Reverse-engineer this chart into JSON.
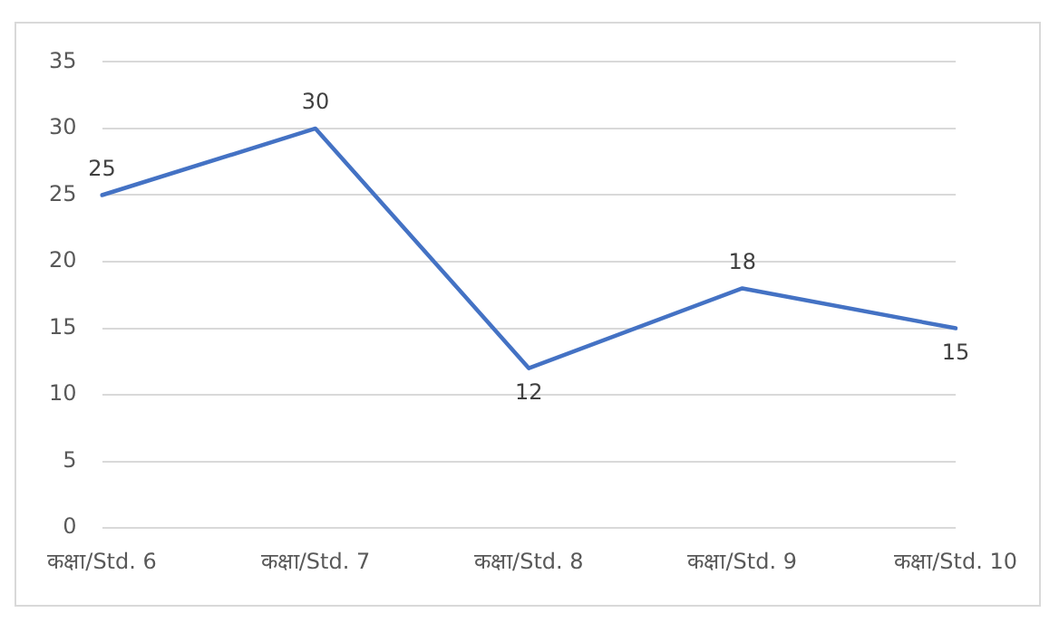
{
  "chart_data": {
    "type": "line",
    "categories": [
      "कक्षा/Std. 6",
      "कक्षा/Std. 7",
      "कक्षा/Std. 8",
      "कक्षा/Std. 9",
      "कक्षा/Std. 10"
    ],
    "series": [
      {
        "color": "#4472c4",
        "values": [
          25,
          30,
          12,
          18,
          15
        ]
      }
    ],
    "ylim": [
      0,
      35
    ],
    "yticks": [
      0,
      5,
      10,
      15,
      20,
      25,
      30,
      35
    ],
    "grid": "y",
    "legend": false,
    "marker": "none",
    "line_style": "solid",
    "data_labels": true
  }
}
